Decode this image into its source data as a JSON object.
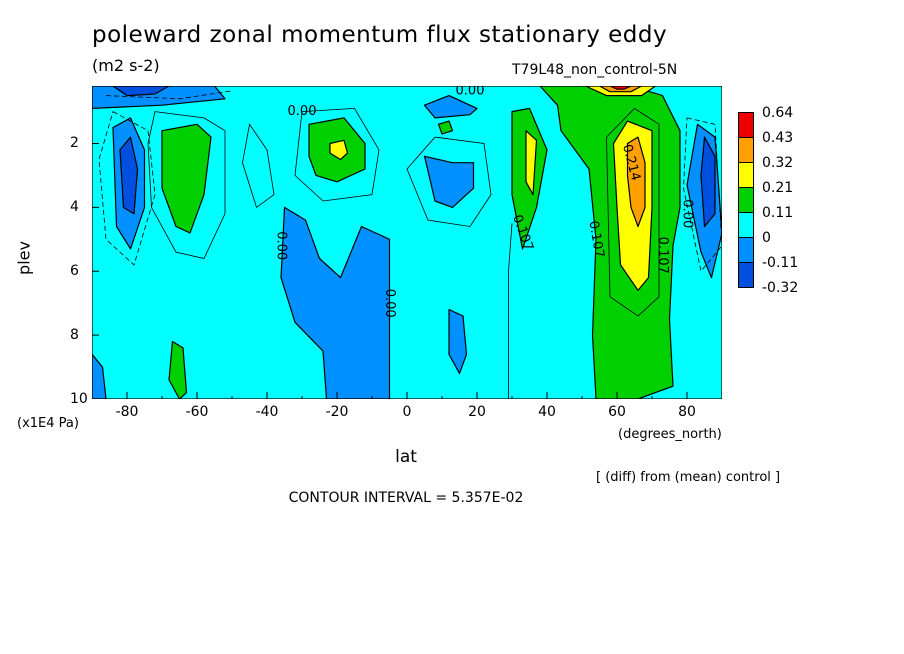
{
  "chart_data": {
    "type": "heatmap",
    "title": "poleward zonal momentum flux stationary eddy",
    "units": "(m2 s-2)",
    "run_label": "T79L48_non_control-5N",
    "xlabel": "lat",
    "x_units": "(degrees_north)",
    "ylabel": "plev",
    "y_units": "(x1E4 Pa)",
    "xlim": [
      -90,
      90
    ],
    "ylim": [
      10,
      0.2
    ],
    "x_ticks": [
      "-80",
      "-60",
      "-40",
      "-20",
      "0",
      "20",
      "40",
      "60",
      "80"
    ],
    "y_ticks": [
      "2",
      "4",
      "6",
      "8",
      "10"
    ],
    "contour_interval_text": "CONTOUR INTERVAL = 5.357E-02",
    "note": "[ (diff) from (mean) control ]",
    "contour_labels": [
      "0.00",
      "0.00",
      "0.00",
      "0.00",
      "0.00",
      "0.107",
      "0.107",
      "0.107",
      "0.214"
    ],
    "colorbar": {
      "labels": [
        "0.64",
        "0.43",
        "0.32",
        "0.21",
        "0.11",
        "0",
        "-0.11",
        "-0.32"
      ],
      "colors": [
        "#ee0000",
        "#ffa000",
        "#ffff00",
        "#00d000",
        "#00ffff",
        "#0090ff",
        "#0050e0"
      ]
    },
    "features": [
      {
        "lat": -80,
        "plev": 3.0,
        "value": -0.2
      },
      {
        "lat": -65,
        "plev": 2.5,
        "value": 0.15
      },
      {
        "lat": -65,
        "plev": 9.0,
        "value": 0.12
      },
      {
        "lat": -20,
        "plev": 2.2,
        "value": 0.22
      },
      {
        "lat": 34,
        "plev": 2.5,
        "value": 0.2
      },
      {
        "lat": 65,
        "plev": 3.0,
        "value": 0.38
      },
      {
        "lat": 65,
        "plev": 0.3,
        "value": 0.6
      },
      {
        "lat": 85,
        "plev": 3.0,
        "value": -0.2
      }
    ]
  }
}
